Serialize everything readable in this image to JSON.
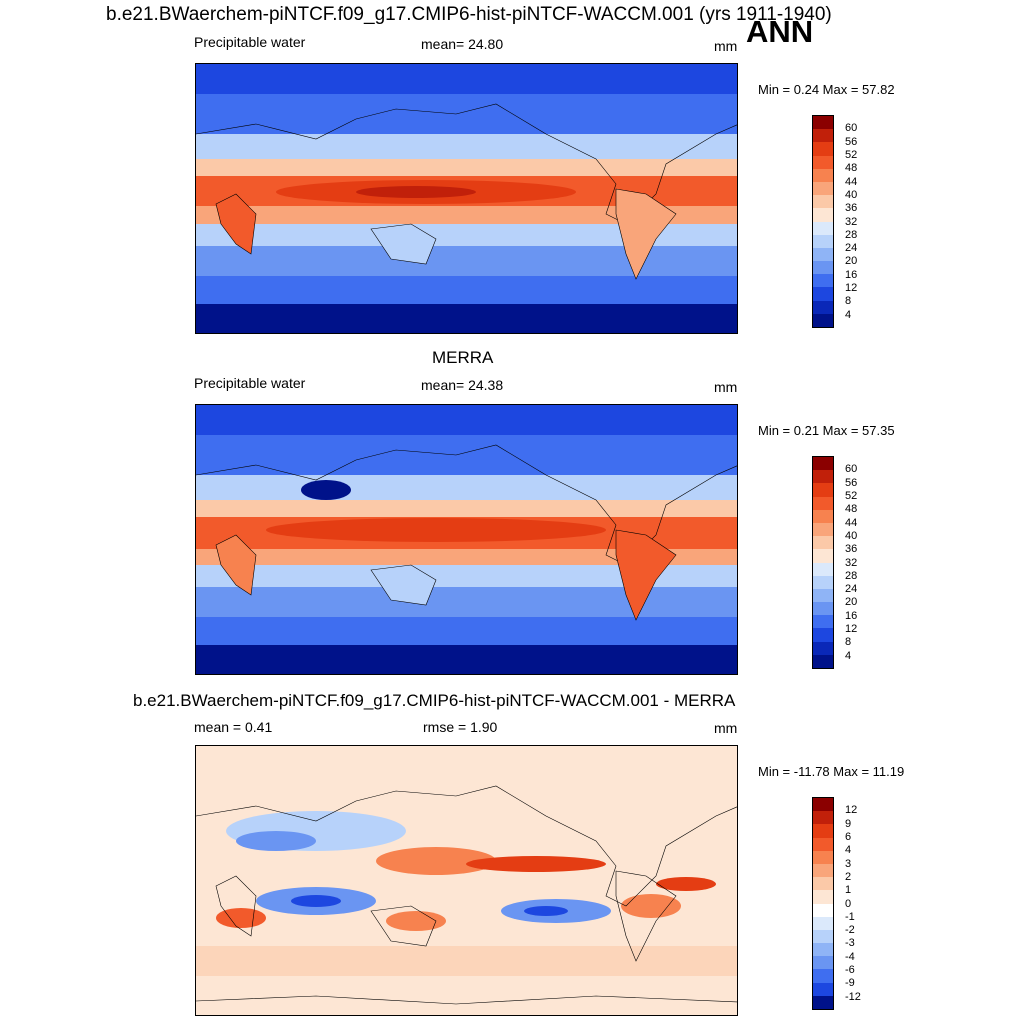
{
  "header": {
    "title": "b.e21.BWaerchem-piNTCF.f09_g17.CMIP6-hist-piNTCF-WACCM.001 (yrs 1911-1940)",
    "season": "ANN"
  },
  "panels": [
    {
      "id": "model",
      "subtitle": "",
      "left_label": "Precipitable water",
      "center_label": "mean=  24.80",
      "units": "mm",
      "minmax": "Min =   0.24 Max =  57.82",
      "levels": [
        "60",
        "56",
        "52",
        "48",
        "44",
        "40",
        "36",
        "32",
        "28",
        "24",
        "20",
        "16",
        "12",
        "8",
        "4"
      ],
      "colors": [
        "#8b0000",
        "#c1200a",
        "#e43d13",
        "#f25a2b",
        "#f7824f",
        "#f9a57a",
        "#fbc9a8",
        "#fde6d4",
        "#dbe9fb",
        "#b7d2fa",
        "#8fb4f6",
        "#6a95f2",
        "#3f6ef0",
        "#1d47e0",
        "#0a28b8",
        "#00128a"
      ]
    },
    {
      "id": "obs",
      "subtitle": "MERRA",
      "left_label": "Precipitable water",
      "center_label": "mean=  24.38",
      "units": "mm",
      "minmax": "Min =   0.21 Max =  57.35",
      "levels": [
        "60",
        "56",
        "52",
        "48",
        "44",
        "40",
        "36",
        "32",
        "28",
        "24",
        "20",
        "16",
        "12",
        "8",
        "4"
      ],
      "colors": [
        "#8b0000",
        "#c1200a",
        "#e43d13",
        "#f25a2b",
        "#f7824f",
        "#f9a57a",
        "#fbc9a8",
        "#fde6d4",
        "#dbe9fb",
        "#b7d2fa",
        "#8fb4f6",
        "#6a95f2",
        "#3f6ef0",
        "#1d47e0",
        "#0a28b8",
        "#00128a"
      ]
    },
    {
      "id": "diff",
      "subtitle": "b.e21.BWaerchem-piNTCF.f09_g17.CMIP6-hist-piNTCF-WACCM.001 - MERRA",
      "left_label": "mean =   0.41",
      "center_label": "rmse =   1.90",
      "units": "mm",
      "minmax": "Min = -11.78 Max =  11.19",
      "levels": [
        "12",
        "9",
        "6",
        "4",
        "3",
        "2",
        "1",
        "0",
        "-1",
        "-2",
        "-3",
        "-4",
        "-6",
        "-9",
        "-12"
      ],
      "colors": [
        "#8b0000",
        "#c1200a",
        "#e43d13",
        "#f25a2b",
        "#f7824f",
        "#f9a57a",
        "#fbc9a8",
        "#fde6d4",
        "#ffffff",
        "#dbe9fb",
        "#b7d2fa",
        "#8fb4f6",
        "#6a95f2",
        "#3f6ef0",
        "#1d47e0",
        "#00128a"
      ]
    }
  ]
}
